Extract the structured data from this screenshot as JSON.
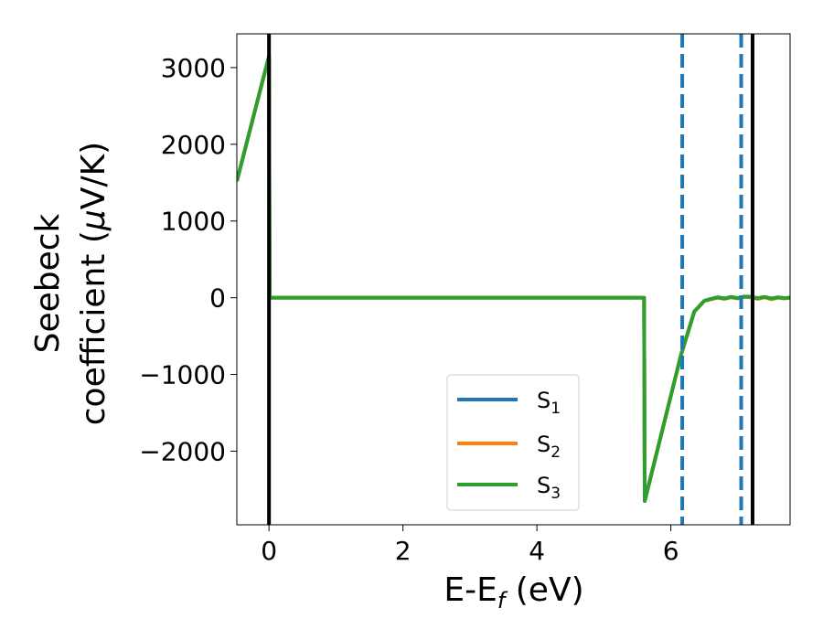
{
  "chart_data": {
    "type": "line",
    "xlabel_main": "E-E",
    "xlabel_sub": "f",
    "xlabel_unit": " (eV)",
    "ylabel_line1": "Seebeck",
    "ylabel_line2_main": "coefficient  (",
    "ylabel_line2_mu": "μ",
    "ylabel_line2_unit": "V/K)",
    "xlim": [
      -0.48,
      7.78
    ],
    "ylim": [
      -2960,
      3440
    ],
    "x_ticks": [
      0,
      2,
      4,
      6
    ],
    "x_tick_labels": [
      "0",
      "2",
      "4",
      "6"
    ],
    "y_ticks": [
      3000,
      2000,
      1000,
      0,
      -1000,
      -2000
    ],
    "y_tick_labels": [
      "3000",
      "2000",
      "1000",
      "0",
      "−1000",
      "−2000"
    ],
    "grid": false,
    "legend_position": "lower-center",
    "series": [
      {
        "name": "S",
        "sub": "1",
        "color": "#1f77b4",
        "x": [
          -0.48,
          0.0,
          0.01,
          5.6,
          5.61,
          6.15,
          6.35,
          6.5,
          6.6,
          6.7,
          6.8,
          6.9,
          7.0,
          7.1,
          7.2,
          7.3,
          7.4,
          7.5,
          7.6,
          7.7,
          7.78
        ],
        "y": [
          1520,
          3150,
          0,
          0,
          -2650,
          -750,
          -180,
          -40,
          -15,
          5,
          -10,
          10,
          -5,
          15,
          10,
          -5,
          10,
          -10,
          5,
          -5,
          0
        ]
      },
      {
        "name": "S",
        "sub": "2",
        "color": "#ff7f0e",
        "x": [
          -0.48,
          0.0,
          0.01,
          5.6,
          5.61,
          6.15,
          6.35,
          6.5,
          6.6,
          6.7,
          6.8,
          6.9,
          7.0,
          7.1,
          7.2,
          7.3,
          7.4,
          7.5,
          7.6,
          7.7,
          7.78
        ],
        "y": [
          1520,
          3150,
          0,
          0,
          -2650,
          -750,
          -180,
          -40,
          -20,
          0,
          -15,
          5,
          -10,
          10,
          5,
          -15,
          5,
          -20,
          0,
          -10,
          0
        ]
      },
      {
        "name": "S",
        "sub": "3",
        "color": "#2ca02c",
        "x": [
          -0.48,
          0.0,
          0.01,
          5.6,
          5.61,
          6.15,
          6.35,
          6.5,
          6.6,
          6.7,
          6.8,
          6.9,
          7.0,
          7.1,
          7.2,
          7.3,
          7.4,
          7.5,
          7.6,
          7.7,
          7.78
        ],
        "y": [
          1520,
          3150,
          0,
          0,
          -2650,
          -750,
          -180,
          -40,
          -15,
          5,
          -10,
          10,
          -5,
          15,
          10,
          -5,
          10,
          -10,
          5,
          -5,
          0
        ]
      }
    ],
    "vlines_solid": {
      "color": "#000000",
      "x": [
        0.0,
        7.22
      ]
    },
    "vlines_dashed": {
      "color": "#1f77b4",
      "x": [
        6.17,
        7.05
      ]
    }
  }
}
